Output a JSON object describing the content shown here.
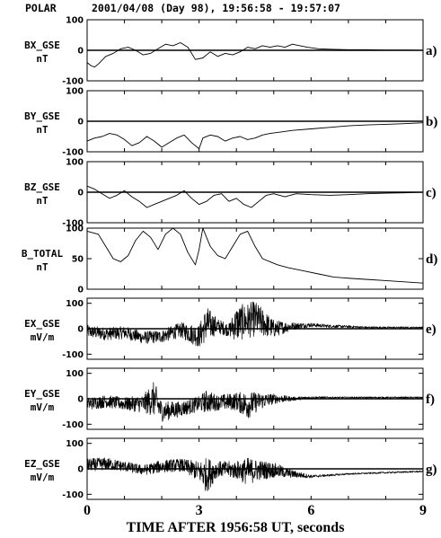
{
  "header": {
    "spacecraft": "POLAR",
    "date_range": "2001/04/08 (Day 98),   19:56:58 - 19:57:07"
  },
  "x_axis": {
    "label": "TIME AFTER 1956:58 UT, seconds",
    "ticks": [
      "0",
      "3",
      "6",
      "9"
    ]
  },
  "colors": {
    "ink": "#000000",
    "background": "#ffffff"
  },
  "chart_data": [
    {
      "type": "line",
      "name_line1": "BX_GSE",
      "name_line2": "nT",
      "tag": "a)",
      "xlim": [
        0,
        9
      ],
      "ylim": [
        -100,
        100
      ],
      "yticks": [
        100,
        0,
        -100
      ],
      "zero_line": true,
      "x": [
        0,
        0.1,
        0.2,
        0.3,
        0.5,
        0.7,
        0.9,
        1.1,
        1.3,
        1.5,
        1.7,
        1.9,
        2.1,
        2.3,
        2.5,
        2.7,
        2.9,
        3.1,
        3.3,
        3.5,
        3.7,
        3.9,
        4.1,
        4.3,
        4.5,
        4.7,
        4.9,
        5.1,
        5.3,
        5.5,
        5.7,
        5.9,
        6.2,
        6.6,
        7.0,
        7.5,
        8.0,
        8.5,
        9.0
      ],
      "y": [
        -40,
        -50,
        -55,
        -45,
        -20,
        -10,
        5,
        10,
        0,
        -15,
        -10,
        5,
        20,
        15,
        25,
        10,
        -30,
        -25,
        -5,
        -20,
        -10,
        -15,
        -5,
        10,
        5,
        15,
        10,
        15,
        10,
        20,
        15,
        10,
        5,
        3,
        2,
        2,
        1,
        1,
        0
      ]
    },
    {
      "type": "line",
      "name_line1": "BY_GSE",
      "name_line2": "nT",
      "tag": "b)",
      "xlim": [
        0,
        9
      ],
      "ylim": [
        -100,
        100
      ],
      "yticks": [
        100,
        0,
        -100
      ],
      "zero_line": true,
      "x": [
        0,
        0.2,
        0.4,
        0.6,
        0.8,
        1.0,
        1.2,
        1.4,
        1.6,
        1.8,
        2.0,
        2.2,
        2.4,
        2.6,
        2.8,
        3.0,
        3.1,
        3.3,
        3.5,
        3.7,
        3.9,
        4.1,
        4.3,
        4.5,
        4.7,
        4.9,
        5.2,
        5.5,
        6.0,
        6.5,
        7.0,
        7.5,
        8.0,
        8.5,
        9.0
      ],
      "y": [
        -65,
        -55,
        -50,
        -40,
        -45,
        -60,
        -80,
        -70,
        -50,
        -65,
        -85,
        -70,
        -55,
        -45,
        -70,
        -90,
        -55,
        -45,
        -50,
        -65,
        -55,
        -50,
        -60,
        -55,
        -45,
        -40,
        -35,
        -30,
        -25,
        -20,
        -15,
        -12,
        -10,
        -8,
        -5
      ]
    },
    {
      "type": "line",
      "name_line1": "BZ_GSE",
      "name_line2": "nT",
      "tag": "c)",
      "xlim": [
        0,
        9
      ],
      "ylim": [
        -100,
        100
      ],
      "yticks": [
        100,
        0,
        -100
      ],
      "zero_line": true,
      "x": [
        0,
        0.2,
        0.4,
        0.6,
        0.8,
        1.0,
        1.2,
        1.4,
        1.6,
        1.8,
        2.0,
        2.2,
        2.4,
        2.6,
        2.8,
        3.0,
        3.2,
        3.4,
        3.6,
        3.8,
        4.0,
        4.2,
        4.4,
        4.6,
        4.8,
        5.0,
        5.3,
        5.6,
        6.0,
        6.5,
        7.0,
        7.5,
        8.0,
        8.5,
        9.0
      ],
      "y": [
        20,
        10,
        -5,
        -20,
        -10,
        5,
        -15,
        -30,
        -50,
        -40,
        -30,
        -20,
        -10,
        5,
        -20,
        -40,
        -30,
        -10,
        -5,
        -30,
        -20,
        -40,
        -50,
        -30,
        -10,
        -5,
        -15,
        -5,
        -8,
        -10,
        -8,
        -5,
        -3,
        -2,
        0
      ]
    },
    {
      "type": "line",
      "name_line1": "B_TOTAL",
      "name_line2": "nT",
      "tag": "d)",
      "xlim": [
        0,
        9
      ],
      "ylim": [
        0,
        100
      ],
      "yticks": [
        100,
        50,
        0
      ],
      "zero_line": false,
      "x": [
        0,
        0.3,
        0.5,
        0.7,
        0.9,
        1.1,
        1.3,
        1.5,
        1.7,
        1.9,
        2.1,
        2.3,
        2.5,
        2.7,
        2.9,
        3.0,
        3.1,
        3.3,
        3.5,
        3.7,
        3.9,
        4.1,
        4.3,
        4.5,
        4.7,
        4.9,
        5.1,
        5.4,
        5.8,
        6.2,
        6.6,
        7.0,
        7.5,
        8.0,
        8.5,
        9.0
      ],
      "y": [
        95,
        90,
        70,
        50,
        45,
        55,
        80,
        95,
        85,
        65,
        90,
        100,
        90,
        60,
        40,
        65,
        100,
        70,
        55,
        50,
        70,
        90,
        95,
        70,
        50,
        45,
        40,
        35,
        30,
        25,
        20,
        18,
        16,
        14,
        12,
        10
      ]
    },
    {
      "type": "line",
      "name_line1": "EX_GSE",
      "name_line2": "mV/m",
      "tag": "e)",
      "xlim": [
        0,
        9
      ],
      "ylim": [
        -120,
        120
      ],
      "yticks": [
        100,
        0,
        -100
      ],
      "zero_line": true,
      "noisy": true,
      "x": [
        0,
        0.5,
        1.0,
        1.5,
        2.0,
        2.5,
        3.0,
        3.2,
        3.5,
        3.8,
        4.0,
        4.5,
        5.0,
        5.5,
        6.0,
        6.5,
        7.0,
        7.5,
        8.0,
        8.5,
        9.0
      ],
      "y": [
        -10,
        -20,
        -15,
        -35,
        -30,
        -5,
        -30,
        20,
        10,
        -5,
        20,
        40,
        0,
        10,
        15,
        10,
        8,
        5,
        5,
        5,
        5
      ],
      "amp": [
        25,
        25,
        25,
        25,
        25,
        30,
        45,
        70,
        30,
        25,
        70,
        70,
        35,
        15,
        8,
        6,
        5,
        4,
        3,
        3,
        3
      ]
    },
    {
      "type": "line",
      "name_line1": "EY_GSE",
      "name_line2": "mV/m",
      "tag": "f)",
      "xlim": [
        0,
        9
      ],
      "ylim": [
        -120,
        120
      ],
      "yticks": [
        100,
        0,
        -100
      ],
      "zero_line": true,
      "noisy": true,
      "x": [
        0,
        0.5,
        1.0,
        1.5,
        1.8,
        2.0,
        2.5,
        3.0,
        3.2,
        3.5,
        4.0,
        4.3,
        4.6,
        5.0,
        5.5,
        6.0,
        6.5,
        7.0,
        7.5,
        8.0,
        9.0
      ],
      "y": [
        -20,
        -10,
        -20,
        -20,
        0,
        -50,
        -40,
        -20,
        -10,
        -15,
        -10,
        -25,
        -10,
        0,
        0,
        5,
        5,
        5,
        5,
        5,
        5
      ],
      "amp": [
        25,
        25,
        25,
        35,
        70,
        40,
        30,
        30,
        45,
        30,
        35,
        55,
        35,
        20,
        8,
        5,
        3,
        3,
        3,
        3,
        3
      ]
    },
    {
      "type": "line",
      "name_line1": "EZ_GSE",
      "name_line2": "mV/m",
      "tag": "g)",
      "xlim": [
        0,
        9
      ],
      "ylim": [
        -120,
        120
      ],
      "yticks": [
        100,
        0,
        -100
      ],
      "zero_line": true,
      "noisy": true,
      "x": [
        0,
        0.5,
        1.0,
        1.5,
        2.0,
        2.5,
        3.0,
        3.2,
        3.5,
        4.0,
        4.3,
        4.6,
        5.0,
        5.5,
        6.0,
        6.5,
        7.0,
        8.0,
        9.0
      ],
      "y": [
        15,
        20,
        10,
        -5,
        10,
        15,
        -10,
        -25,
        0,
        -5,
        -10,
        -5,
        -5,
        -20,
        -30,
        -25,
        -20,
        -15,
        -10
      ],
      "amp": [
        25,
        25,
        20,
        20,
        25,
        25,
        40,
        70,
        30,
        35,
        55,
        40,
        30,
        15,
        6,
        4,
        3,
        3,
        3
      ]
    }
  ]
}
